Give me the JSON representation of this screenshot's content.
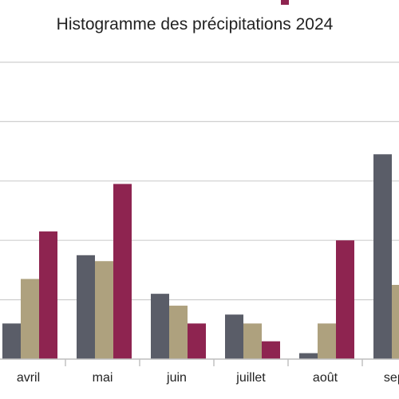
{
  "chart_data": {
    "type": "bar",
    "title": "Histogramme des précipitations 2024",
    "categories": [
      "avril",
      "mai",
      "juin",
      "juillet",
      "août",
      "septe"
    ],
    "series": [
      {
        "color": "#5a5d68",
        "values": [
          12,
          35,
          22,
          15,
          2,
          69
        ]
      },
      {
        "color": "#aea17e",
        "values": [
          27,
          33,
          18,
          12,
          12,
          25
        ]
      },
      {
        "color": "#8e2450",
        "values": [
          43,
          59,
          12,
          6,
          40,
          null
        ]
      }
    ],
    "ylim": [
      0,
      100
    ],
    "grid": true,
    "partial_marks": {
      "cropped_red_top": 99
    }
  }
}
